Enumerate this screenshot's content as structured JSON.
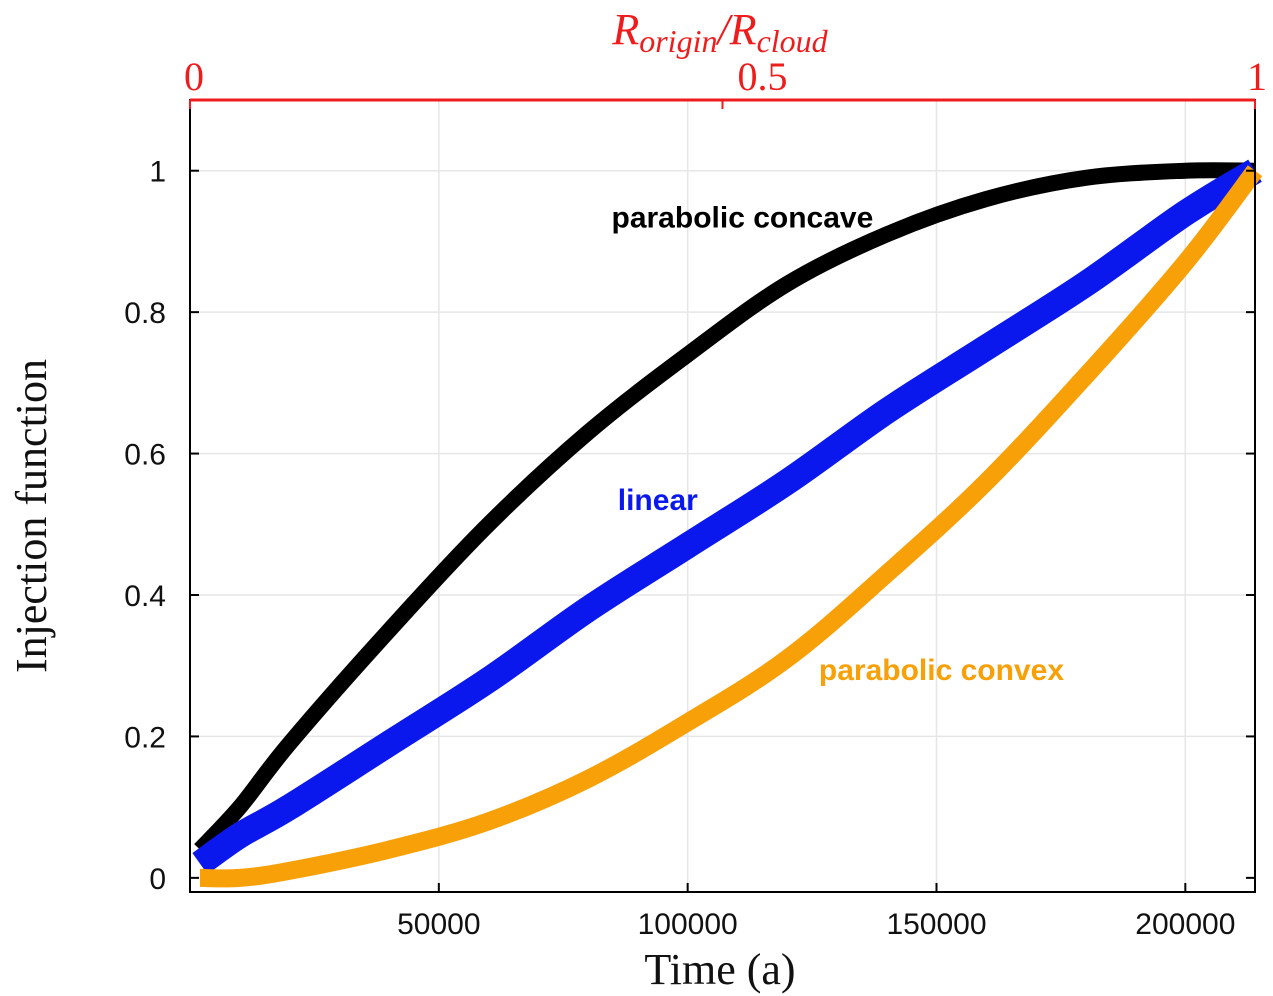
{
  "chart_data": {
    "type": "line",
    "xlabel": "Time (a)",
    "ylabel": "Injection function",
    "xlim": [
      0,
      214000
    ],
    "ylim": [
      -0.02,
      1.1
    ],
    "x_ticks": [
      50000,
      100000,
      150000,
      200000
    ],
    "x_tick_labels": [
      "50000",
      "100000",
      "150000",
      "200000"
    ],
    "y_ticks": [
      0,
      0.2,
      0.4,
      0.6,
      0.8,
      1
    ],
    "y_tick_labels": [
      "0",
      "0.2",
      "0.4",
      "0.6",
      "0.8",
      "1"
    ],
    "grid": true,
    "legend": "none",
    "top_axis": {
      "label_main": "R",
      "label_sub1": "origin",
      "label_mid": "/R",
      "label_sub2": "cloud",
      "ticks": [
        0,
        0.5,
        1
      ],
      "tick_labels": [
        "0",
        "0.5",
        "1"
      ],
      "color": "#ee1c1c"
    },
    "series": [
      {
        "name": "parabolic concave",
        "color": "#000000",
        "x": [
          2000,
          10000,
          20000,
          40000,
          60000,
          80000,
          100000,
          120000,
          140000,
          160000,
          180000,
          200000,
          214000
        ],
        "y": [
          0.04,
          0.1,
          0.19,
          0.35,
          0.5,
          0.63,
          0.74,
          0.84,
          0.91,
          0.96,
          0.99,
          1.0,
          1.0
        ]
      },
      {
        "name": "linear",
        "color": "#0a18ee",
        "x": [
          2000,
          10000,
          20000,
          40000,
          60000,
          80000,
          100000,
          120000,
          140000,
          160000,
          180000,
          200000,
          214000
        ],
        "y": [
          0.02,
          0.06,
          0.1,
          0.19,
          0.28,
          0.38,
          0.47,
          0.56,
          0.66,
          0.75,
          0.84,
          0.94,
          1.0
        ]
      },
      {
        "name": "parabolic convex",
        "color": "#f8a008",
        "x": [
          2000,
          10000,
          20000,
          40000,
          60000,
          80000,
          100000,
          120000,
          140000,
          160000,
          180000,
          200000,
          214000
        ],
        "y": [
          0.0,
          0.0,
          0.01,
          0.04,
          0.08,
          0.14,
          0.22,
          0.31,
          0.43,
          0.56,
          0.71,
          0.87,
          1.0
        ]
      }
    ],
    "annotations": [
      {
        "text": "parabolic concave",
        "x": 111000,
        "y": 0.92,
        "color": "#000000"
      },
      {
        "text": "linear",
        "x": 94000,
        "y": 0.52,
        "color": "#0a18ee"
      },
      {
        "text": "parabolic convex",
        "x": 151000,
        "y": 0.28,
        "color": "#f8a008"
      }
    ]
  }
}
